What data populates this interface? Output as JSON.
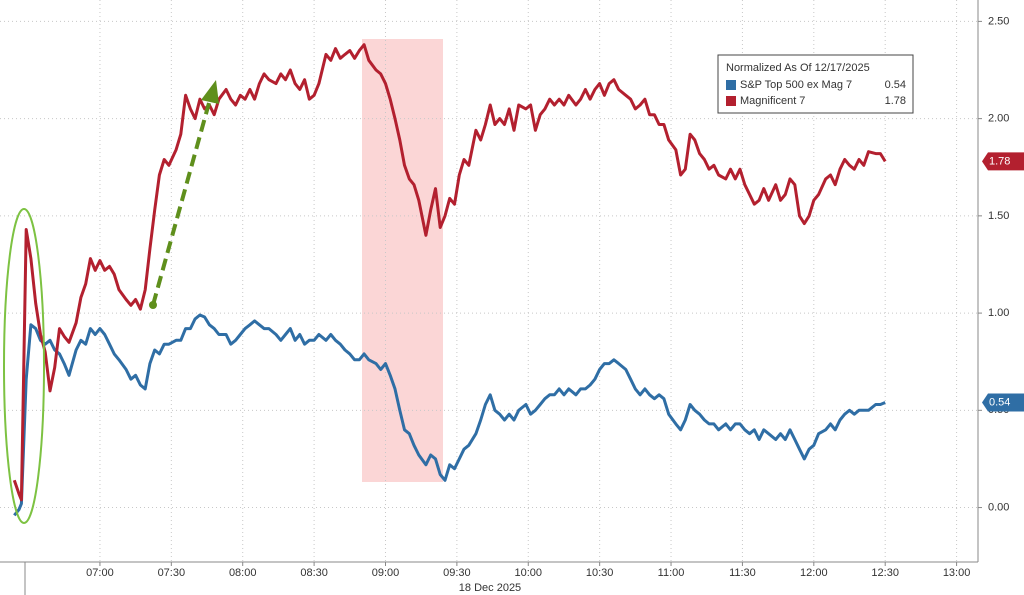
{
  "chart_data": {
    "type": "line",
    "xlabel": "18 Dec 2025",
    "legend_title": "Normalized As Of 12/17/2025",
    "legend": "upper right",
    "grid": true,
    "x": [
      "06:24",
      "06:26",
      "06:27",
      "06:29",
      "06:31",
      "06:33",
      "06:35",
      "06:37",
      "06:39",
      "06:41",
      "06:43",
      "06:45",
      "06:47",
      "06:50",
      "06:52",
      "06:54",
      "06:56",
      "06:58",
      "07:00",
      "07:02",
      "07:04",
      "07:06",
      "07:08",
      "07:11",
      "07:13",
      "07:15",
      "07:17",
      "07:19",
      "07:21",
      "07:23",
      "07:25",
      "07:27",
      "07:29",
      "07:32",
      "07:34",
      "07:36",
      "07:38",
      "07:40",
      "07:42",
      "07:44",
      "07:46",
      "07:48",
      "07:50",
      "07:53",
      "07:55",
      "07:57",
      "07:59",
      "08:01",
      "08:03",
      "08:05",
      "08:07",
      "08:09",
      "08:11",
      "08:14",
      "08:16",
      "08:18",
      "08:20",
      "08:22",
      "08:24",
      "08:26",
      "08:28",
      "08:30",
      "08:32",
      "08:35",
      "08:37",
      "08:39",
      "08:41",
      "08:43",
      "08:45",
      "08:47",
      "08:49",
      "08:51",
      "08:53",
      "08:56",
      "08:58",
      "09:00",
      "09:02",
      "09:04",
      "09:06",
      "09:08",
      "09:10",
      "09:12",
      "09:14",
      "09:17",
      "09:19",
      "09:21",
      "09:23",
      "09:25",
      "09:27",
      "09:29",
      "09:31",
      "09:33",
      "09:35",
      "09:38",
      "09:40",
      "09:42",
      "09:44",
      "09:46",
      "09:48",
      "09:50",
      "09:52",
      "09:54",
      "09:56",
      "09:59",
      "10:01",
      "10:03",
      "10:05",
      "10:07",
      "10:09",
      "10:11",
      "10:13",
      "10:15",
      "10:17",
      "10:20",
      "10:22",
      "10:24",
      "10:26",
      "10:28",
      "10:30",
      "10:32",
      "10:34",
      "10:36",
      "10:38",
      "10:41",
      "10:43",
      "10:45",
      "10:47",
      "10:49",
      "10:51",
      "10:53",
      "10:55",
      "10:57",
      "10:59",
      "11:02",
      "11:04",
      "11:06",
      "11:08",
      "11:10",
      "11:12",
      "11:14",
      "11:16",
      "11:18",
      "11:20",
      "11:23",
      "11:25",
      "11:27",
      "11:29",
      "11:31",
      "11:33",
      "11:35",
      "11:37",
      "11:39",
      "11:41",
      "11:44",
      "11:46",
      "11:48",
      "11:50",
      "11:52",
      "11:54",
      "11:56",
      "11:58",
      "12:00",
      "12:02",
      "12:05",
      "12:07",
      "12:09",
      "12:11",
      "12:13",
      "12:15",
      "12:17",
      "12:19",
      "12:21",
      "12:23",
      "12:26",
      "12:28",
      "12:30"
    ],
    "series": [
      {
        "name": "S&P Top 500 ex Mag 7",
        "color": "#2f6ea5",
        "values": [
          -0.04,
          -0.01,
          0.02,
          0.66,
          0.94,
          0.92,
          0.86,
          0.84,
          0.86,
          0.81,
          0.79,
          0.74,
          0.68,
          0.81,
          0.86,
          0.84,
          0.92,
          0.89,
          0.92,
          0.89,
          0.84,
          0.79,
          0.76,
          0.71,
          0.66,
          0.68,
          0.63,
          0.61,
          0.74,
          0.81,
          0.79,
          0.84,
          0.84,
          0.86,
          0.86,
          0.92,
          0.92,
          0.97,
          0.99,
          0.98,
          0.94,
          0.92,
          0.89,
          0.89,
          0.84,
          0.86,
          0.89,
          0.92,
          0.94,
          0.96,
          0.94,
          0.92,
          0.92,
          0.89,
          0.86,
          0.89,
          0.92,
          0.86,
          0.89,
          0.84,
          0.86,
          0.86,
          0.89,
          0.86,
          0.89,
          0.86,
          0.84,
          0.81,
          0.79,
          0.76,
          0.76,
          0.79,
          0.76,
          0.74,
          0.71,
          0.74,
          0.68,
          0.61,
          0.5,
          0.4,
          0.38,
          0.32,
          0.27,
          0.22,
          0.27,
          0.25,
          0.17,
          0.14,
          0.22,
          0.2,
          0.25,
          0.3,
          0.32,
          0.38,
          0.45,
          0.53,
          0.58,
          0.5,
          0.48,
          0.45,
          0.48,
          0.45,
          0.5,
          0.53,
          0.48,
          0.5,
          0.53,
          0.56,
          0.58,
          0.58,
          0.61,
          0.58,
          0.61,
          0.58,
          0.61,
          0.61,
          0.63,
          0.66,
          0.71,
          0.74,
          0.74,
          0.76,
          0.74,
          0.71,
          0.66,
          0.61,
          0.58,
          0.61,
          0.58,
          0.56,
          0.58,
          0.56,
          0.48,
          0.43,
          0.4,
          0.45,
          0.53,
          0.5,
          0.48,
          0.45,
          0.43,
          0.43,
          0.4,
          0.43,
          0.4,
          0.43,
          0.43,
          0.4,
          0.38,
          0.4,
          0.35,
          0.4,
          0.38,
          0.35,
          0.38,
          0.35,
          0.4,
          0.35,
          0.3,
          0.25,
          0.3,
          0.32,
          0.38,
          0.4,
          0.43,
          0.4,
          0.45,
          0.48,
          0.5,
          0.48,
          0.5,
          0.5,
          0.5,
          0.53,
          0.53,
          0.54
        ]
      },
      {
        "name": "Magnificent 7",
        "color": "#b3202f",
        "values": [
          0.14,
          0.07,
          0.04,
          1.43,
          1.28,
          1.05,
          0.89,
          0.8,
          0.6,
          0.72,
          0.92,
          0.88,
          0.85,
          0.95,
          1.08,
          1.15,
          1.28,
          1.22,
          1.27,
          1.22,
          1.24,
          1.2,
          1.12,
          1.07,
          1.04,
          1.07,
          1.02,
          1.12,
          1.33,
          1.53,
          1.71,
          1.79,
          1.76,
          1.84,
          1.92,
          2.12,
          2.05,
          2.0,
          2.1,
          2.05,
          2.07,
          2.02,
          2.1,
          2.15,
          2.1,
          2.07,
          2.12,
          2.1,
          2.15,
          2.1,
          2.18,
          2.23,
          2.2,
          2.18,
          2.23,
          2.2,
          2.25,
          2.18,
          2.15,
          2.2,
          2.1,
          2.12,
          2.18,
          2.33,
          2.3,
          2.36,
          2.31,
          2.33,
          2.35,
          2.31,
          2.35,
          2.38,
          2.3,
          2.25,
          2.23,
          2.18,
          2.1,
          2.0,
          1.89,
          1.76,
          1.69,
          1.66,
          1.58,
          1.4,
          1.53,
          1.64,
          1.44,
          1.5,
          1.59,
          1.56,
          1.71,
          1.79,
          1.76,
          1.94,
          1.89,
          1.97,
          2.07,
          1.97,
          2.0,
          1.97,
          2.05,
          1.94,
          2.07,
          2.05,
          2.07,
          1.94,
          2.02,
          2.05,
          2.1,
          2.07,
          2.1,
          2.07,
          2.12,
          2.07,
          2.1,
          2.15,
          2.1,
          2.15,
          2.18,
          2.12,
          2.18,
          2.2,
          2.15,
          2.12,
          2.1,
          2.05,
          2.07,
          2.1,
          2.02,
          2.02,
          1.97,
          1.97,
          1.89,
          1.84,
          1.71,
          1.74,
          1.92,
          1.89,
          1.82,
          1.79,
          1.74,
          1.76,
          1.71,
          1.69,
          1.74,
          1.69,
          1.74,
          1.66,
          1.61,
          1.56,
          1.58,
          1.64,
          1.58,
          1.66,
          1.58,
          1.61,
          1.69,
          1.66,
          1.5,
          1.46,
          1.5,
          1.58,
          1.61,
          1.69,
          1.71,
          1.66,
          1.74,
          1.79,
          1.76,
          1.74,
          1.79,
          1.76,
          1.83,
          1.82,
          1.82,
          1.78
        ]
      }
    ],
    "xlim": [
      "06:18",
      "13:09"
    ],
    "xticks": [
      "07:00",
      "07:30",
      "08:00",
      "08:30",
      "09:00",
      "09:30",
      "10:00",
      "10:30",
      "11:00",
      "11:30",
      "12:00",
      "12:30",
      "13:00"
    ],
    "ylim": [
      -0.28,
      2.61
    ],
    "yticks": [
      {
        "value": 0,
        "label": "0.00"
      },
      {
        "value": 0.5,
        "label": "0.50"
      },
      {
        "value": 1,
        "label": "1.00"
      },
      {
        "value": 1.5,
        "label": "1.50"
      },
      {
        "value": 2,
        "label": "2.00"
      },
      {
        "value": 2.5,
        "label": "2.50"
      }
    ]
  }
}
